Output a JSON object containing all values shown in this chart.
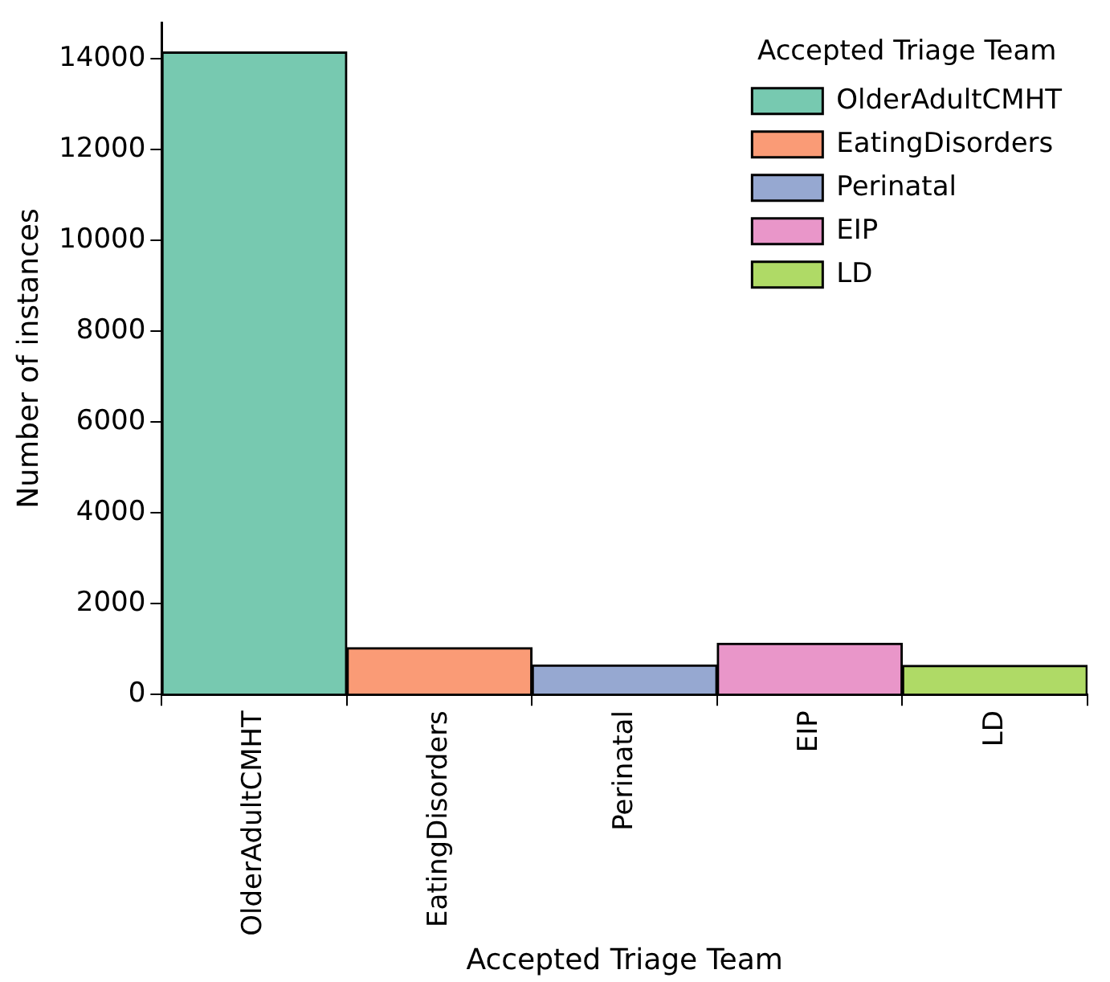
{
  "chart_data": {
    "type": "bar",
    "xlabel": "Accepted Triage Team",
    "ylabel": "Number of instances",
    "legend_title": "Accepted Triage Team",
    "categories": [
      "OlderAdultCMHT",
      "EatingDisorders",
      "Perinatal",
      "EIP",
      "LD"
    ],
    "series": [
      {
        "name": "OlderAdultCMHT",
        "color": "#77c9b0",
        "values": [
          14150,
          null,
          null,
          null,
          null
        ]
      },
      {
        "name": "EatingDisorders",
        "color": "#fa9b76",
        "values": [
          null,
          1030,
          null,
          null,
          null
        ]
      },
      {
        "name": "Perinatal",
        "color": "#96a8d1",
        "values": [
          null,
          null,
          650,
          null,
          null
        ]
      },
      {
        "name": "EIP",
        "color": "#e996c9",
        "values": [
          null,
          null,
          null,
          1130,
          null
        ]
      },
      {
        "name": "LD",
        "color": "#afda66",
        "values": [
          null,
          null,
          null,
          null,
          640
        ]
      }
    ],
    "ylim": [
      0,
      14800
    ],
    "yticks": [
      0,
      2000,
      4000,
      6000,
      8000,
      10000,
      12000,
      14000
    ],
    "grid": false,
    "legend": "top right"
  }
}
